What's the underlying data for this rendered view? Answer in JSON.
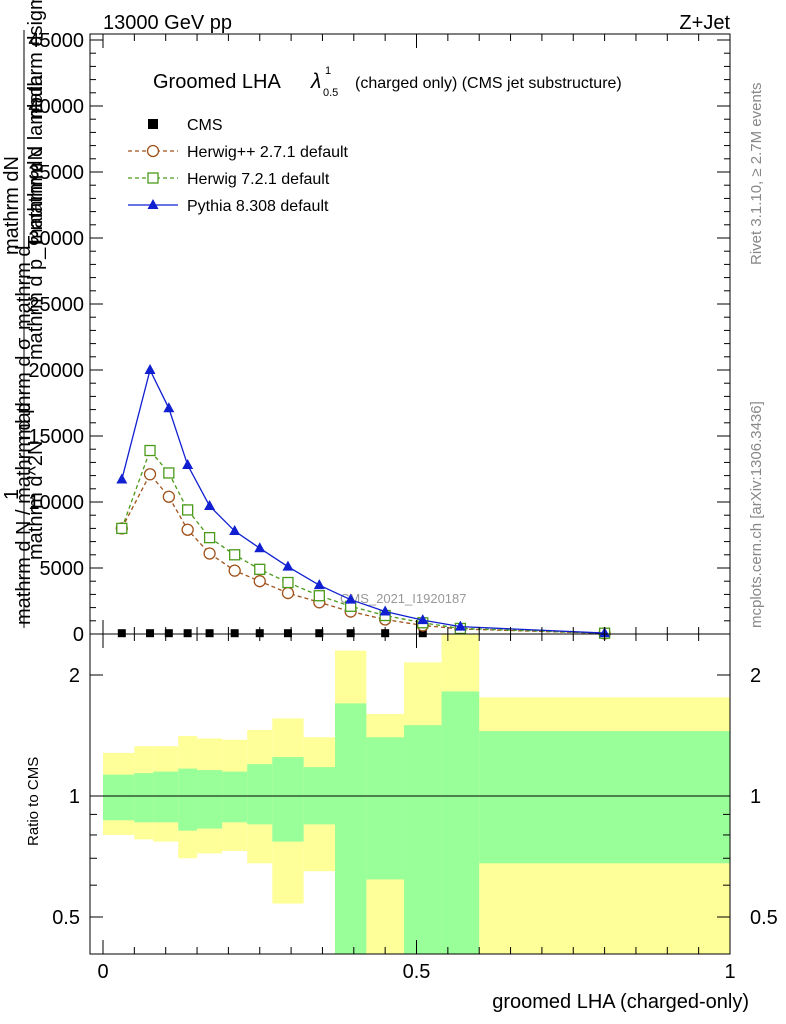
{
  "header": {
    "left": "13000 GeV pp",
    "right": "Z+Jet"
  },
  "side_text": {
    "rivet": "Rivet 3.1.10, ≥ 2.7M events",
    "mcplots": "mcplots.cern.ch [arXiv:1306.3436]"
  },
  "watermark": "CMS_2021_I1920187",
  "chart_data": [
    {
      "type": "line",
      "title_main": "Groomed LHA",
      "title_symbol": "λ",
      "title_sup": "1",
      "title_sub": "0.5",
      "title_rest": "(charged only) (CMS jet substructure)",
      "ylabel_lines": [
        "1",
        "mathrm d N / mathrm d p",
        "mathrm d σ",
        "mathrm d",
        "mathrm d^2N",
        "mathrm d p_T mathrm d lambda",
        "mathrm dN",
        "mathrm dN",
        "mathrm dsigma"
      ],
      "ylabel": "mathrm d N / mathrm d p ... mathrm dN",
      "ylim": [
        0,
        45000
      ],
      "yticks": [
        "0",
        "5000",
        "10000",
        "15000",
        "20000",
        "25000",
        "30000",
        "35000",
        "40000",
        "45000"
      ],
      "xlim": [
        0,
        1
      ],
      "legend_position": "top-left",
      "x": [
        0.03,
        0.075,
        0.105,
        0.135,
        0.17,
        0.21,
        0.25,
        0.295,
        0.345,
        0.395,
        0.45,
        0.51,
        0.57,
        0.8
      ],
      "series": [
        {
          "name": "CMS",
          "color": "#000000",
          "marker": "square-filled",
          "line": "none",
          "values": [
            60,
            60,
            60,
            60,
            60,
            60,
            60,
            60,
            60,
            60,
            60,
            60,
            60,
            60
          ]
        },
        {
          "name": "Herwig++ 2.7.1 default",
          "color": "#a0521a",
          "marker": "circle-open",
          "line": "dashed",
          "values": [
            8000,
            12100,
            10400,
            7900,
            6100,
            4800,
            4000,
            3100,
            2400,
            1700,
            1100,
            650,
            380,
            50
          ]
        },
        {
          "name": "Herwig 7.2.1 default",
          "color": "#4a9a1a",
          "marker": "square-open",
          "line": "dashed",
          "values": [
            8000,
            13900,
            12200,
            9400,
            7300,
            6000,
            4900,
            3900,
            2900,
            2100,
            1400,
            850,
            420,
            60
          ]
        },
        {
          "name": "Pythia 8.308 default",
          "color": "#1020d0",
          "marker": "triangle-filled",
          "line": "solid",
          "values": [
            11700,
            20000,
            17100,
            12800,
            9700,
            7800,
            6500,
            5100,
            3700,
            2600,
            1700,
            1050,
            560,
            70
          ]
        }
      ]
    },
    {
      "type": "area",
      "ylabel": "Ratio to CMS",
      "xlabel": "groomed LHA (charged-only)",
      "xticks": [
        "0",
        "0.5",
        "1"
      ],
      "yticks": [
        "0.5",
        "1",
        "2"
      ],
      "ylim": [
        0.35,
        2.4
      ],
      "scale": "log",
      "bins": [
        0,
        0.05,
        0.08,
        0.12,
        0.15,
        0.19,
        0.23,
        0.27,
        0.32,
        0.37,
        0.42,
        0.48,
        0.54,
        0.6,
        1.0
      ],
      "bands": [
        {
          "name": "stat",
          "color": "#99ff99",
          "low": [
            0.87,
            0.86,
            0.86,
            0.82,
            0.83,
            0.86,
            0.85,
            0.77,
            0.85,
            0.3,
            0.62,
            0.3,
            0.3,
            0.68
          ],
          "high": [
            1.13,
            1.14,
            1.15,
            1.17,
            1.16,
            1.15,
            1.2,
            1.25,
            1.18,
            1.7,
            1.4,
            1.5,
            1.82,
            1.45
          ]
        },
        {
          "name": "total",
          "color": "#ffff99",
          "low": [
            0.8,
            0.78,
            0.77,
            0.7,
            0.72,
            0.73,
            0.68,
            0.54,
            0.65,
            0.3,
            0.36,
            0.3,
            0.3,
            0.3
          ],
          "high": [
            1.28,
            1.33,
            1.33,
            1.41,
            1.39,
            1.38,
            1.46,
            1.56,
            1.4,
            2.3,
            1.6,
            2.15,
            2.6,
            1.76
          ]
        }
      ]
    }
  ]
}
